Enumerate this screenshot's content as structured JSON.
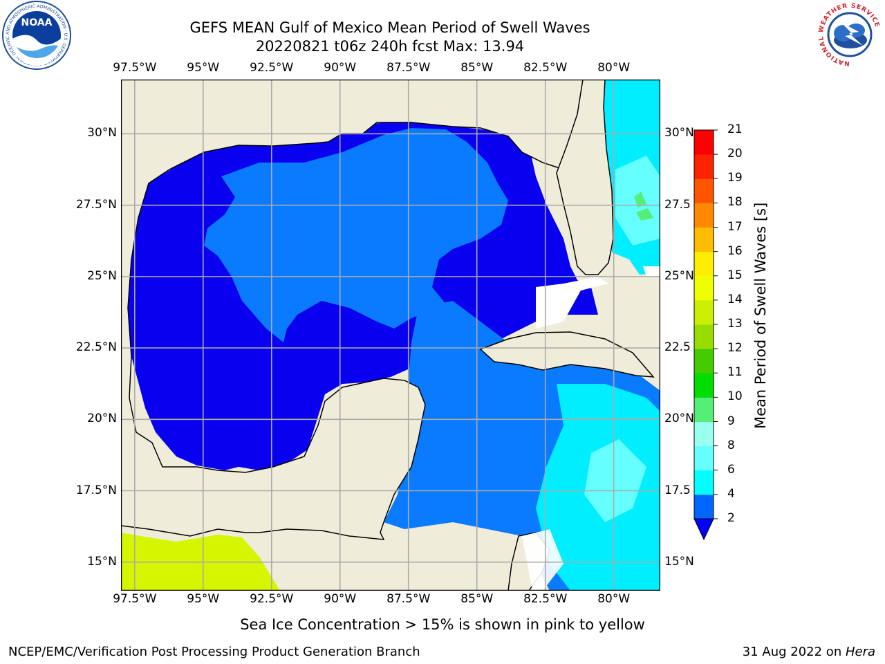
{
  "title": {
    "line1": "GEFS MEAN Gulf of Mexico Mean Period of Swell Waves",
    "line2": "20220821 t06z 240h fcst   Max: 13.94"
  },
  "map": {
    "lon_ticks": [
      "97.5°W",
      "95°W",
      "92.5°W",
      "90°W",
      "87.5°W",
      "85°W",
      "82.5°W",
      "80°W"
    ],
    "lon_values": [
      -97.5,
      -95,
      -92.5,
      -90,
      -87.5,
      -85,
      -82.5,
      -80
    ],
    "lat_ticks_left": [
      "30°N",
      "27.5°N",
      "25°N",
      "22.5°N",
      "20°N",
      "17.5°N",
      "15°N"
    ],
    "lat_ticks_right": [
      "30°N",
      "27.5",
      "25°N",
      "22.5",
      "20°N",
      "17.5",
      "15°N"
    ],
    "lat_values": [
      30,
      27.5,
      25,
      22.5,
      20,
      17.5,
      15
    ],
    "lon_range": [
      -98,
      -78.3
    ],
    "lat_range": [
      14,
      31.9
    ],
    "grid": true,
    "land_color": "#efedda",
    "ocean_color": "#0a00f0"
  },
  "colorbar": {
    "label": "Mean Period of Swell Waves [s]",
    "ticks": [
      "2",
      "4",
      "6",
      "8",
      "9",
      "10",
      "11",
      "12",
      "13",
      "14",
      "15",
      "16",
      "17",
      "18",
      "19",
      "20",
      "21"
    ],
    "colors": [
      "#0066ff",
      "#00ccff",
      "#00ffff",
      "#66ffff",
      "#99ffee",
      "#55ee77",
      "#00dd00",
      "#44cc00",
      "#99dd00",
      "#ccee00",
      "#eeff00",
      "#ffee00",
      "#ffbb00",
      "#ff8800",
      "#ff5500",
      "#ff2200",
      "#ff0000"
    ],
    "under_color": "#0000ff"
  },
  "note": "Sea Ice Concentration > 15% is shown in pink to yellow",
  "footer": {
    "left": "NCEP/EMC/Verification Post Processing Product Generation Branch",
    "date": "31 Aug 2022 on ",
    "machine": "Hera"
  },
  "logos": {
    "noaa_text": "NOAA",
    "noaa_ring": "NATIONAL OCEANIC AND ATMOSPHERIC ADMINISTRATION · U.S. DEPARTMENT OF COMMERCE",
    "nws_ring": "NATIONAL WEATHER SERVICE"
  }
}
